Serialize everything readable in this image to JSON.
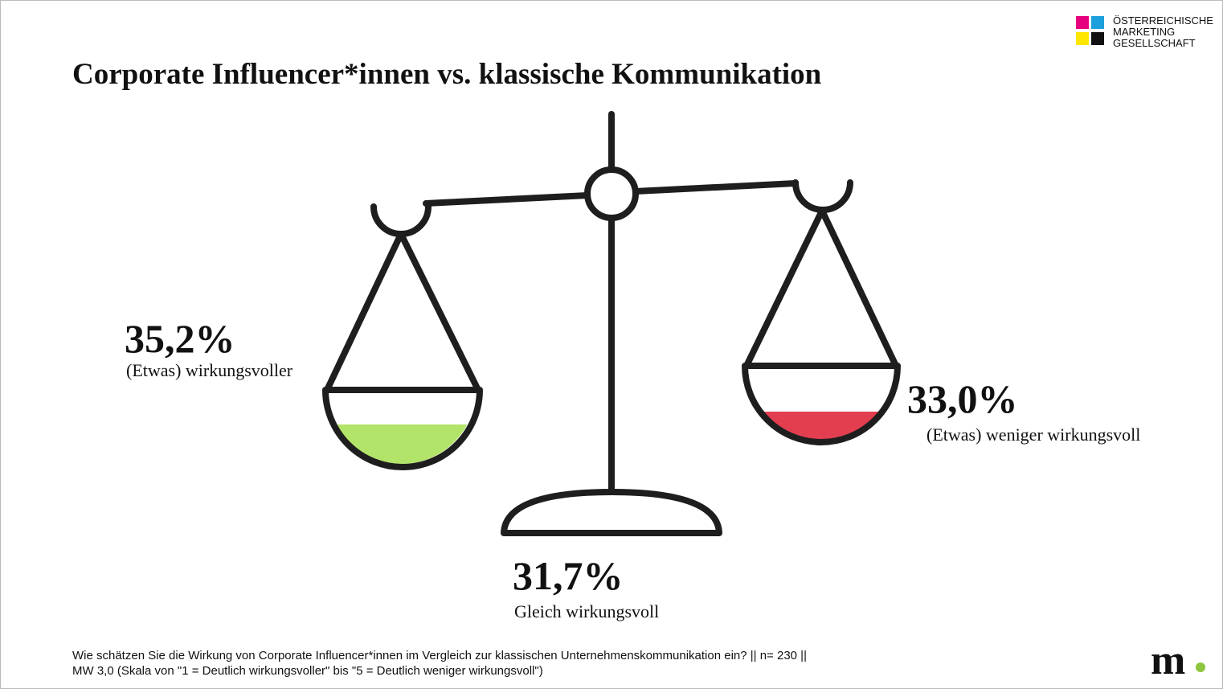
{
  "logo": {
    "lines": [
      "ÖSTERREICHISCHE",
      "MARKETING",
      "GESELLSCHAFT"
    ]
  },
  "title": "Corporate Influencer*innen vs. klassische Kommunikation",
  "items": [
    {
      "value": "35,2%",
      "label": "(Etwas) wirkungsvoller"
    },
    {
      "value": "33,0%",
      "label": "(Etwas) weniger wirkungsvoll"
    },
    {
      "value": "31,7%",
      "label": "Gleich wirkungsvoll"
    }
  ],
  "footnote": [
    "Wie schätzen Sie die Wirkung von Corporate Influencer*innen im Vergleich zur klassischen Unternehmenskommunikation ein? || n= 230 ||",
    "MW 3,0 (Skala von \"1 = Deutlich wirkungsvoller\" bis \"5 = Deutlich weniger wirkungsvoll\")"
  ],
  "brand": "m"
}
